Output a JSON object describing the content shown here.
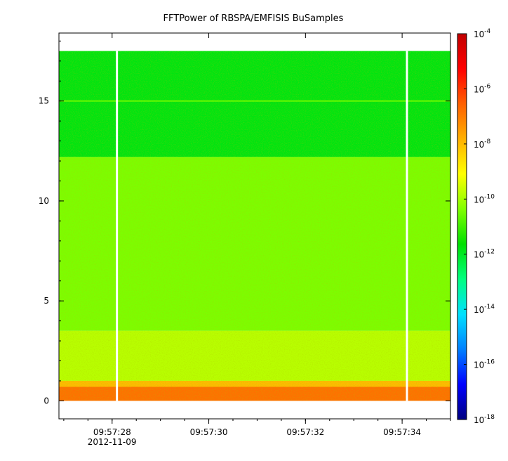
{
  "chart_data": {
    "type": "heatmap",
    "title": "FFTPower of RBSPA/EMFISIS  BuSamples",
    "xlabel": "",
    "ylabel": "",
    "x_ticks": [
      "09:57:28",
      "09:57:30",
      "09:57:32",
      "09:57:34"
    ],
    "x_date_label": "2012-11-09",
    "x_range": [
      "09:57:26.9",
      "09:57:35.0"
    ],
    "y_ticks": [
      0,
      5,
      10,
      15
    ],
    "ylim": [
      -0.9,
      18.4
    ],
    "data_ylim": [
      0,
      17.5
    ],
    "colorbar": {
      "scale": "log",
      "range": [
        1e-18,
        0.0001
      ],
      "tick_exponents": [
        -4,
        -6,
        -8,
        -10,
        -12,
        -14,
        -16,
        -18
      ],
      "tick_base": "10",
      "colormap": [
        "#00007f",
        "#0000ff",
        "#0080ff",
        "#00e0ff",
        "#00ff80",
        "#00e000",
        "#80ff00",
        "#ffff00",
        "#ffb000",
        "#ff6000",
        "#ff0000",
        "#c00000"
      ]
    },
    "gaps_at": [
      "09:57:28.1",
      "09:57:34.1"
    ],
    "frequency_bands": [
      {
        "y_range": [
          12.2,
          17.5
        ],
        "power_exponent": -11.8
      },
      {
        "y_range": [
          3.5,
          12.2
        ],
        "power_exponent": -10.4
      },
      {
        "y_range": [
          1.0,
          3.5
        ],
        "power_exponent": -9.8
      },
      {
        "y_range": [
          0.7,
          1.0
        ],
        "power_exponent": -8.0
      },
      {
        "y_range": [
          0.0,
          0.7
        ],
        "power_exponent": -6.8
      }
    ],
    "emission_line": {
      "y": 15.0,
      "power_exponent": -10.6
    },
    "grid": false,
    "legend": "none"
  }
}
